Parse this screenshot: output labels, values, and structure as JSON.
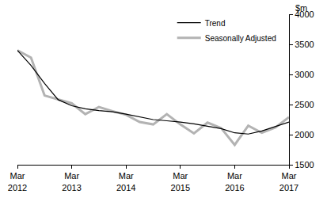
{
  "chart_data": {
    "type": "line",
    "y_label": "$m",
    "categories": [
      "Mar\n2012",
      null,
      null,
      null,
      "Mar\n2013",
      null,
      null,
      null,
      "Mar\n2014",
      null,
      null,
      null,
      "Mar\n2015",
      null,
      null,
      null,
      "Mar\n2016",
      null,
      null,
      null,
      "Mar\n2017"
    ],
    "series": [
      {
        "name": "Trend",
        "color": "#000000",
        "line_style": "solid",
        "values": [
          3400,
          3150,
          2850,
          2580,
          2480,
          2430,
          2400,
          2380,
          2340,
          2290,
          2250,
          2230,
          2210,
          2180,
          2140,
          2100,
          2030,
          2010,
          2060,
          2140,
          2210
        ]
      },
      {
        "name": "Seasonally Adjusted",
        "color": "#b3b3b3",
        "line_style": "solid",
        "values": [
          3400,
          3280,
          2650,
          2580,
          2520,
          2340,
          2460,
          2390,
          2330,
          2210,
          2170,
          2340,
          2170,
          2020,
          2200,
          2110,
          1830,
          2150,
          2030,
          2120,
          2290
        ]
      }
    ],
    "ylim": [
      1500,
      4000
    ],
    "yticks": [
      1500,
      2000,
      2500,
      3000,
      3500,
      4000
    ],
    "grid": false,
    "legend": "upper right"
  }
}
